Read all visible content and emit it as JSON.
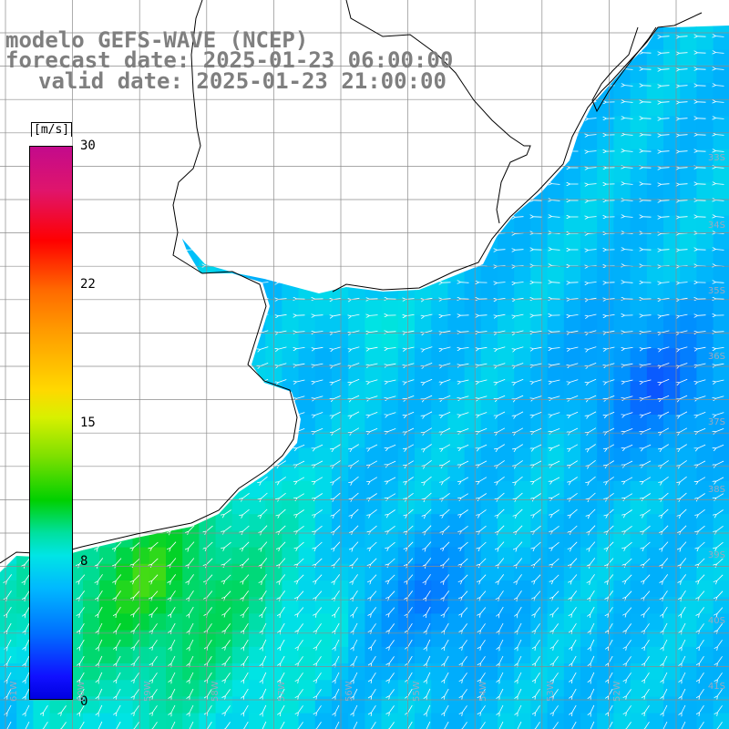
{
  "title": {
    "line1": "modelo GEFS-WAVE (NCEP)",
    "line2": "forecast date: 2025-01-23 06:00:00",
    "line3": "valid date: 2025-01-23 21:00:00"
  },
  "colorbar": {
    "unit": "[m/s]",
    "ticks": [
      "30",
      "22",
      "15",
      "8",
      "0"
    ],
    "colors": [
      "#c30a8c",
      "#ff0000",
      "#ff9900",
      "#ffd800",
      "#00d000",
      "#00e5e5",
      "#0070ff",
      "#0000e0"
    ]
  },
  "map": {
    "lat_labels": [
      "33S",
      "34S",
      "35S",
      "36S",
      "37S",
      "38S",
      "39S",
      "40S",
      "41S"
    ],
    "lon_labels": [
      "61W",
      "60W",
      "59W",
      "58W",
      "57W",
      "56W",
      "55W",
      "54W",
      "53W",
      "52W"
    ],
    "land_color": "#ffffff",
    "grid_color": "#8c8c8c"
  }
}
